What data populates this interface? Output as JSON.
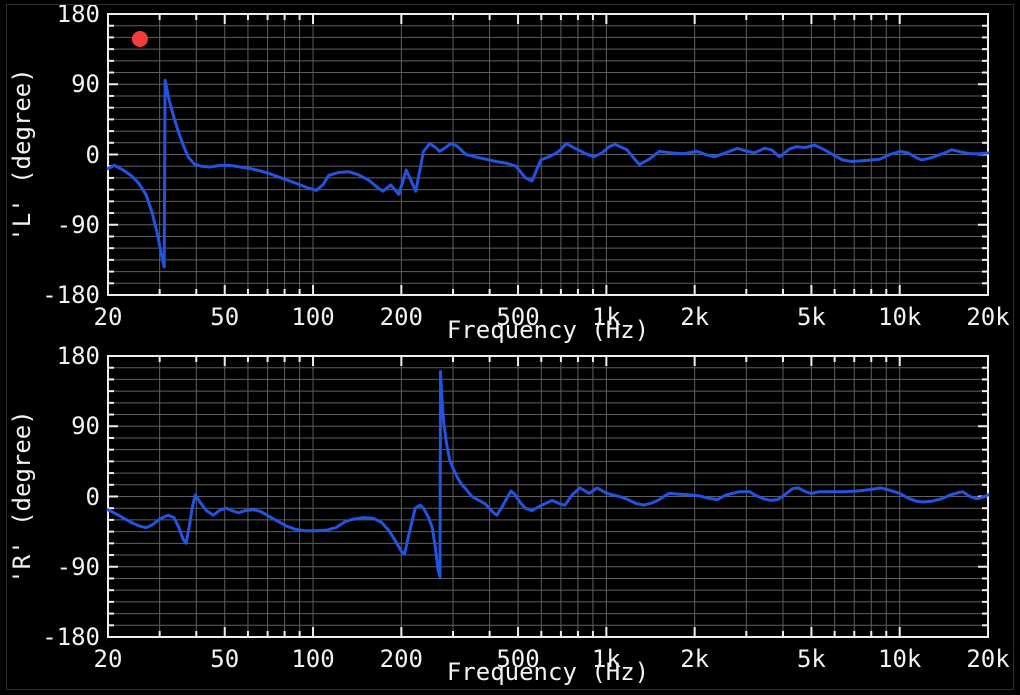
{
  "theme": {
    "background": "#000000",
    "frame_color": "#eeeeee",
    "grid_color": "#5f5f5f",
    "text_color": "#f2f2f2",
    "curve_color": "#2353e0",
    "marker_color": "#f23b3b"
  },
  "chart_data": [
    {
      "type": "line",
      "title": "",
      "xlabel": "Frequency (Hz)",
      "ylabel": "'L' (degree)",
      "x_scale": "log",
      "x_range": [
        20,
        20000
      ],
      "y_range": [
        -180,
        180
      ],
      "grid": true,
      "legend": "none",
      "y_minor_step": 15,
      "x_ticks": [
        {
          "value": 20,
          "label": "20"
        },
        {
          "value": 50,
          "label": "50"
        },
        {
          "value": 100,
          "label": "100"
        },
        {
          "value": 200,
          "label": "200"
        },
        {
          "value": 500,
          "label": "500"
        },
        {
          "value": 1000,
          "label": "1k"
        },
        {
          "value": 2000,
          "label": "2k"
        },
        {
          "value": 5000,
          "label": "5k"
        },
        {
          "value": 10000,
          "label": "10k"
        },
        {
          "value": 20000,
          "label": "20k"
        }
      ],
      "y_ticks": [
        {
          "value": 180,
          "label": "180"
        },
        {
          "value": 90,
          "label": "90"
        },
        {
          "value": 0,
          "label": "0"
        },
        {
          "value": -90,
          "label": "-90"
        },
        {
          "value": -180,
          "label": "-180"
        }
      ],
      "x_gridlines": [
        20,
        30,
        40,
        50,
        60,
        70,
        80,
        90,
        100,
        200,
        300,
        400,
        500,
        600,
        700,
        800,
        900,
        1000,
        2000,
        3000,
        4000,
        5000,
        6000,
        7000,
        8000,
        9000,
        10000,
        20000
      ],
      "markers": [
        {
          "f": 25.7,
          "deg": 148,
          "radius": 8,
          "color": "#f23b3b",
          "name": "red-status-dot"
        }
      ],
      "series": [
        {
          "name": "L",
          "color": "#2353e0",
          "points": [
            [
              20,
              -18
            ],
            [
              21,
              -14
            ],
            [
              22.3,
              -19
            ],
            [
              24,
              -27
            ],
            [
              25.5,
              -37
            ],
            [
              27,
              -52
            ],
            [
              28.3,
              -75
            ],
            [
              29.4,
              -100
            ],
            [
              30.3,
              -125
            ],
            [
              31.1,
              -144
            ],
            [
              31.3,
              95
            ],
            [
              32.3,
              70
            ],
            [
              33.4,
              50
            ],
            [
              34.7,
              30
            ],
            [
              36.1,
              12
            ],
            [
              37.5,
              -3
            ],
            [
              39.3,
              -12
            ],
            [
              41.6,
              -15
            ],
            [
              44.6,
              -16
            ],
            [
              48.3,
              -14
            ],
            [
              52.2,
              -14
            ],
            [
              56.5,
              -16
            ],
            [
              61.1,
              -18
            ],
            [
              66.1,
              -21
            ],
            [
              71.6,
              -25
            ],
            [
              79.2,
              -31
            ],
            [
              87.7,
              -37
            ],
            [
              96.4,
              -43
            ],
            [
              102.7,
              -46
            ],
            [
              108.5,
              -38
            ],
            [
              112.9,
              -27
            ],
            [
              122,
              -23
            ],
            [
              132,
              -22
            ],
            [
              143,
              -26
            ],
            [
              155,
              -33
            ],
            [
              167,
              -43
            ],
            [
              173,
              -47
            ],
            [
              184,
              -39
            ],
            [
              196,
              -51
            ],
            [
              208,
              -20
            ],
            [
              224,
              -47
            ],
            [
              238,
              4
            ],
            [
              250,
              14
            ],
            [
              262,
              9
            ],
            [
              270,
              4
            ],
            [
              283,
              9
            ],
            [
              295,
              14
            ],
            [
              309,
              11
            ],
            [
              332,
              0
            ],
            [
              367,
              -4
            ],
            [
              420,
              -9
            ],
            [
              455,
              -11
            ],
            [
              492,
              -15
            ],
            [
              530,
              -30
            ],
            [
              558,
              -34
            ],
            [
              597,
              -7
            ],
            [
              637,
              -3
            ],
            [
              670,
              1
            ],
            [
              698,
              6
            ],
            [
              729,
              14
            ],
            [
              782,
              8
            ],
            [
              850,
              1
            ],
            [
              907,
              -3
            ],
            [
              967,
              2
            ],
            [
              1022,
              10
            ],
            [
              1070,
              13
            ],
            [
              1176,
              6
            ],
            [
              1294,
              -13
            ],
            [
              1400,
              -6
            ],
            [
              1514,
              4
            ],
            [
              1665,
              2
            ],
            [
              1830,
              1
            ],
            [
              2042,
              4
            ],
            [
              2175,
              0
            ],
            [
              2335,
              -3
            ],
            [
              2545,
              2
            ],
            [
              2797,
              8
            ],
            [
              3026,
              4
            ],
            [
              3197,
              2
            ],
            [
              3460,
              8
            ],
            [
              3655,
              6
            ],
            [
              3892,
              -3
            ],
            [
              4212,
              7
            ],
            [
              4450,
              10
            ],
            [
              4776,
              9
            ],
            [
              5127,
              12
            ],
            [
              5546,
              6
            ],
            [
              5905,
              0
            ],
            [
              6392,
              -7
            ],
            [
              6860,
              -9
            ],
            [
              7420,
              -8
            ],
            [
              8030,
              -7
            ],
            [
              8556,
              -6
            ],
            [
              9252,
              0
            ],
            [
              10013,
              4
            ],
            [
              10661,
              2
            ],
            [
              11527,
              -5
            ],
            [
              11893,
              -7
            ],
            [
              12866,
              -4
            ],
            [
              14253,
              2
            ],
            [
              15059,
              6
            ],
            [
              16294,
              3
            ],
            [
              17349,
              1
            ],
            [
              18770,
              1
            ],
            [
              20000,
              2
            ]
          ]
        }
      ]
    },
    {
      "type": "line",
      "title": "",
      "xlabel": "Frequency (Hz)",
      "ylabel": "'R' (degree)",
      "x_scale": "log",
      "x_range": [
        20,
        20000
      ],
      "y_range": [
        -180,
        180
      ],
      "grid": true,
      "legend": "none",
      "y_minor_step": 15,
      "x_ticks": [
        {
          "value": 20,
          "label": "20"
        },
        {
          "value": 50,
          "label": "50"
        },
        {
          "value": 100,
          "label": "100"
        },
        {
          "value": 200,
          "label": "200"
        },
        {
          "value": 500,
          "label": "500"
        },
        {
          "value": 1000,
          "label": "1k"
        },
        {
          "value": 2000,
          "label": "2k"
        },
        {
          "value": 5000,
          "label": "5k"
        },
        {
          "value": 10000,
          "label": "10k"
        },
        {
          "value": 20000,
          "label": "20k"
        }
      ],
      "y_ticks": [
        {
          "value": 180,
          "label": "180"
        },
        {
          "value": 90,
          "label": "90"
        },
        {
          "value": 0,
          "label": "0"
        },
        {
          "value": -90,
          "label": "-90"
        },
        {
          "value": -180,
          "label": "-180"
        }
      ],
      "x_gridlines": [
        20,
        30,
        40,
        50,
        60,
        70,
        80,
        90,
        100,
        200,
        300,
        400,
        500,
        600,
        700,
        800,
        900,
        1000,
        2000,
        3000,
        4000,
        5000,
        6000,
        7000,
        8000,
        9000,
        10000,
        20000
      ],
      "markers": [],
      "series": [
        {
          "name": "R",
          "color": "#2353e0",
          "points": [
            [
              20,
              -17
            ],
            [
              21.5,
              -23
            ],
            [
              22.9,
              -29
            ],
            [
              24.2,
              -34
            ],
            [
              25.7,
              -38
            ],
            [
              27,
              -40
            ],
            [
              28.4,
              -36
            ],
            [
              30,
              -29
            ],
            [
              32,
              -24
            ],
            [
              33.6,
              -27
            ],
            [
              34.9,
              -40
            ],
            [
              36.1,
              -55
            ],
            [
              36.9,
              -60
            ],
            [
              37.8,
              -40
            ],
            [
              38.7,
              -15
            ],
            [
              39.7,
              2
            ],
            [
              41.3,
              -8
            ],
            [
              43.3,
              -18
            ],
            [
              45.7,
              -24
            ],
            [
              48.3,
              -17
            ],
            [
              50.6,
              -15
            ],
            [
              53,
              -18
            ],
            [
              55.6,
              -21
            ],
            [
              58.8,
              -18
            ],
            [
              62.6,
              -17
            ],
            [
              66.1,
              -19
            ],
            [
              70.5,
              -25
            ],
            [
              75.2,
              -31
            ],
            [
              81.4,
              -38
            ],
            [
              87.1,
              -42
            ],
            [
              94.1,
              -44
            ],
            [
              102.7,
              -44
            ],
            [
              111.3,
              -43
            ],
            [
              119.6,
              -40
            ],
            [
              129,
              -32
            ],
            [
              137.4,
              -29
            ],
            [
              148.6,
              -27
            ],
            [
              160.7,
              -28
            ],
            [
              171,
              -33
            ],
            [
              181,
              -43
            ],
            [
              191,
              -57
            ],
            [
              200.6,
              -71
            ],
            [
              205.4,
              -73
            ],
            [
              211.9,
              -50
            ],
            [
              223,
              -15
            ],
            [
              232,
              -11
            ],
            [
              238,
              -15
            ],
            [
              247,
              -26
            ],
            [
              255,
              -40
            ],
            [
              261,
              -64
            ],
            [
              267,
              -94
            ],
            [
              271,
              -103
            ],
            [
              272,
              160
            ],
            [
              275,
              125
            ],
            [
              279,
              95
            ],
            [
              285,
              68
            ],
            [
              292,
              48
            ],
            [
              300,
              36
            ],
            [
              310,
              25
            ],
            [
              320,
              16
            ],
            [
              333,
              9
            ],
            [
              348,
              0
            ],
            [
              368,
              -5
            ],
            [
              385,
              -9
            ],
            [
              413,
              -21
            ],
            [
              423,
              -24
            ],
            [
              440,
              -14
            ],
            [
              458,
              -2
            ],
            [
              473,
              7
            ],
            [
              489,
              2
            ],
            [
              507,
              -7
            ],
            [
              529,
              -15
            ],
            [
              558,
              -18
            ],
            [
              603,
              -11
            ],
            [
              653,
              -5
            ],
            [
              700,
              -10
            ],
            [
              723,
              -11
            ],
            [
              764,
              2
            ],
            [
              813,
              11
            ],
            [
              873,
              4
            ],
            [
              930,
              11
            ],
            [
              1006,
              4
            ],
            [
              1105,
              0
            ],
            [
              1168,
              -3
            ],
            [
              1264,
              -9
            ],
            [
              1345,
              -11
            ],
            [
              1440,
              -8
            ],
            [
              1514,
              -4
            ],
            [
              1584,
              1
            ],
            [
              1639,
              4
            ],
            [
              1780,
              3
            ],
            [
              1917,
              2
            ],
            [
              2060,
              1
            ],
            [
              2215,
              -2
            ],
            [
              2390,
              -4
            ],
            [
              2560,
              2
            ],
            [
              2830,
              6
            ],
            [
              3080,
              6
            ],
            [
              3197,
              2
            ],
            [
              3430,
              -3
            ],
            [
              3630,
              -5
            ],
            [
              3832,
              -4
            ],
            [
              4080,
              3
            ],
            [
              4310,
              10
            ],
            [
              4520,
              11
            ],
            [
              4776,
              6
            ],
            [
              5000,
              4
            ],
            [
              5290,
              6
            ],
            [
              5830,
              6
            ],
            [
              6480,
              6
            ],
            [
              7180,
              7
            ],
            [
              7970,
              9
            ],
            [
              8630,
              11
            ],
            [
              9252,
              8
            ],
            [
              10013,
              4
            ],
            [
              10661,
              -2
            ],
            [
              11400,
              -6
            ],
            [
              11988,
              -7
            ],
            [
              12866,
              -6
            ],
            [
              13900,
              -3
            ],
            [
              14900,
              2
            ],
            [
              15870,
              5
            ],
            [
              16400,
              6
            ],
            [
              17349,
              0
            ],
            [
              18300,
              -3
            ],
            [
              19200,
              -1
            ],
            [
              20000,
              2
            ]
          ]
        }
      ]
    }
  ]
}
